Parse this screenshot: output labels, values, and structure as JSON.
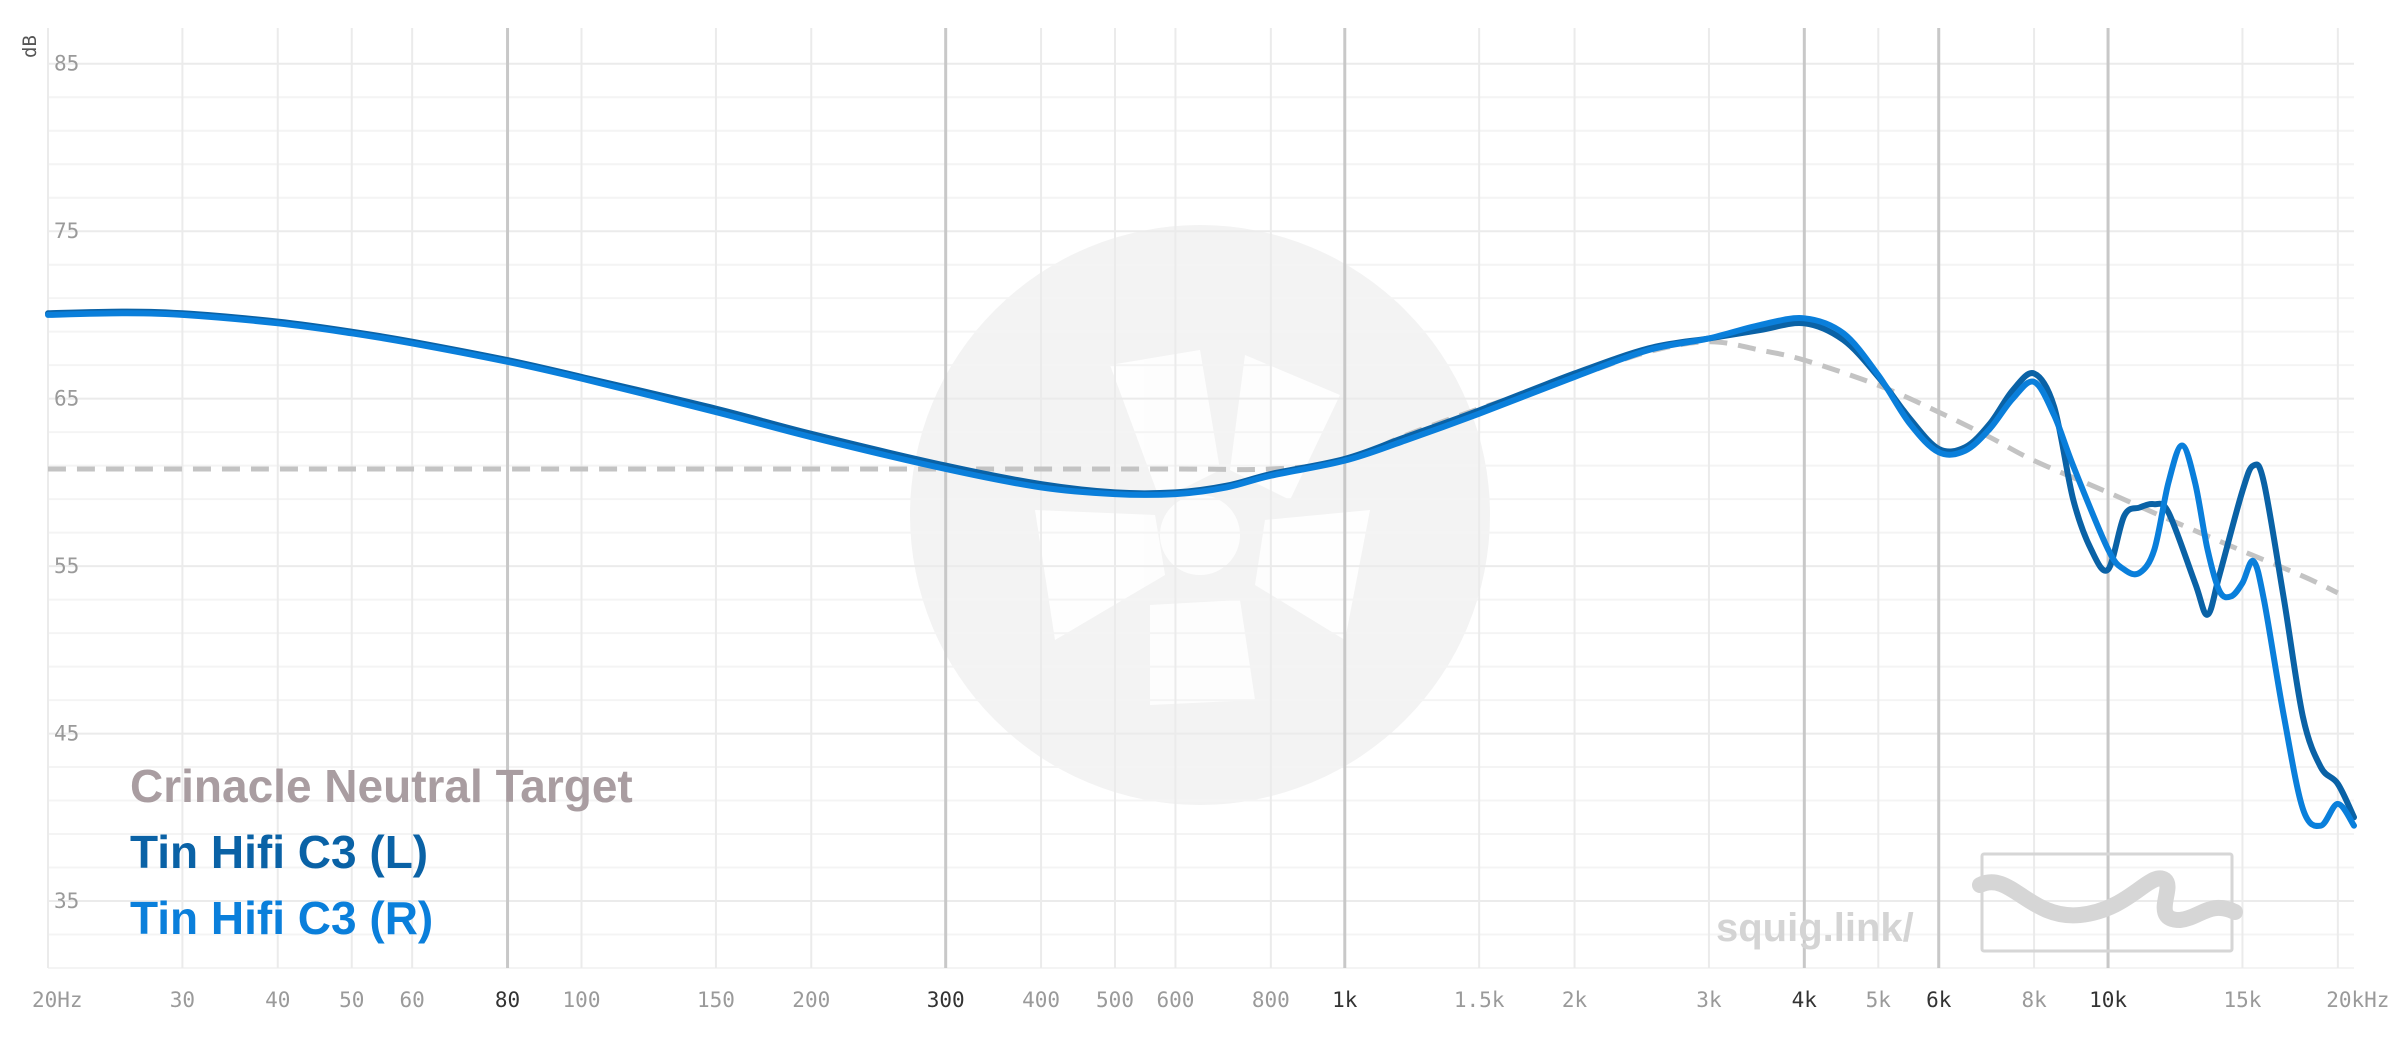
{
  "chart_data": {
    "type": "line",
    "xscale": "log",
    "xlim": [
      20,
      21000
    ],
    "ylim": [
      31,
      86
    ],
    "y_unit": "dB",
    "yticks": [
      35,
      45,
      55,
      65,
      75,
      85
    ],
    "xticks": [
      {
        "value": 20,
        "label": "20Hz",
        "major": false
      },
      {
        "value": 30,
        "label": "30",
        "major": false
      },
      {
        "value": 40,
        "label": "40",
        "major": false
      },
      {
        "value": 50,
        "label": "50",
        "major": false
      },
      {
        "value": 60,
        "label": "60",
        "major": false
      },
      {
        "value": 80,
        "label": "80",
        "major": true
      },
      {
        "value": 100,
        "label": "100",
        "major": false
      },
      {
        "value": 150,
        "label": "150",
        "major": false
      },
      {
        "value": 200,
        "label": "200",
        "major": false
      },
      {
        "value": 300,
        "label": "300",
        "major": true
      },
      {
        "value": 400,
        "label": "400",
        "major": false
      },
      {
        "value": 500,
        "label": "500",
        "major": false
      },
      {
        "value": 600,
        "label": "600",
        "major": false
      },
      {
        "value": 800,
        "label": "800",
        "major": false
      },
      {
        "value": 1000,
        "label": "1k",
        "major": true
      },
      {
        "value": 1500,
        "label": "1.5k",
        "major": false
      },
      {
        "value": 2000,
        "label": "2k",
        "major": false
      },
      {
        "value": 3000,
        "label": "3k",
        "major": false
      },
      {
        "value": 4000,
        "label": "4k",
        "major": true
      },
      {
        "value": 5000,
        "label": "5k",
        "major": false
      },
      {
        "value": 6000,
        "label": "6k",
        "major": true
      },
      {
        "value": 8000,
        "label": "8k",
        "major": false
      },
      {
        "value": 10000,
        "label": "10k",
        "major": true
      },
      {
        "value": 15000,
        "label": "15k",
        "major": false
      },
      {
        "value": 20000,
        "label": "20kHz",
        "major": false
      }
    ],
    "legend_placement": "bottom-left",
    "grid": true,
    "series": [
      {
        "name": "Crinacle Neutral Target",
        "color": "#a99da1",
        "line_color": "#c3c3c3",
        "dashed": true,
        "points": [
          [
            20,
            60.8
          ],
          [
            100,
            60.8
          ],
          [
            300,
            60.8
          ],
          [
            600,
            60.8
          ],
          [
            800,
            60.8
          ],
          [
            1000,
            61.3
          ],
          [
            1200,
            62.8
          ],
          [
            1500,
            64.4
          ],
          [
            2000,
            66.3
          ],
          [
            2500,
            67.8
          ],
          [
            3000,
            68.4
          ],
          [
            3500,
            67.9
          ],
          [
            4000,
            67.3
          ],
          [
            5000,
            65.8
          ],
          [
            6000,
            64.2
          ],
          [
            7000,
            62.7
          ],
          [
            8000,
            61.3
          ],
          [
            10000,
            59.4
          ],
          [
            12000,
            57.8
          ],
          [
            15000,
            55.9
          ],
          [
            18000,
            54.4
          ],
          [
            20000,
            53.4
          ]
        ]
      },
      {
        "name": "Tin Hifi C3 (L)",
        "color": "#0a62a6",
        "dashed": false,
        "points": [
          [
            20,
            70.1
          ],
          [
            25,
            70.2
          ],
          [
            30,
            70.1
          ],
          [
            40,
            69.6
          ],
          [
            50,
            69
          ],
          [
            60,
            68.4
          ],
          [
            80,
            67.3
          ],
          [
            100,
            66.3
          ],
          [
            150,
            64.4
          ],
          [
            200,
            62.9
          ],
          [
            300,
            61
          ],
          [
            400,
            59.9
          ],
          [
            500,
            59.4
          ],
          [
            600,
            59.4
          ],
          [
            700,
            59.8
          ],
          [
            800,
            60.5
          ],
          [
            1000,
            61.4
          ],
          [
            1200,
            62.7
          ],
          [
            1500,
            64.3
          ],
          [
            2000,
            66.5
          ],
          [
            2500,
            68
          ],
          [
            3000,
            68.6
          ],
          [
            3500,
            69.1
          ],
          [
            4000,
            69.5
          ],
          [
            4500,
            68.5
          ],
          [
            5000,
            66.3
          ],
          [
            5500,
            63.8
          ],
          [
            6000,
            62
          ],
          [
            6500,
            62.1
          ],
          [
            7000,
            63.5
          ],
          [
            7500,
            65.5
          ],
          [
            8000,
            66.5
          ],
          [
            8500,
            64.5
          ],
          [
            9000,
            59
          ],
          [
            9500,
            56
          ],
          [
            10000,
            54.8
          ],
          [
            10500,
            58
          ],
          [
            11000,
            58.5
          ],
          [
            11500,
            58.7
          ],
          [
            12000,
            58.2
          ],
          [
            13000,
            54
          ],
          [
            13500,
            52.1
          ],
          [
            14000,
            54.5
          ],
          [
            15000,
            59.5
          ],
          [
            15500,
            61
          ],
          [
            16000,
            60
          ],
          [
            17000,
            53
          ],
          [
            18000,
            46
          ],
          [
            19000,
            43
          ],
          [
            20000,
            42
          ],
          [
            21000,
            40
          ]
        ]
      },
      {
        "name": "Tin Hifi C3 (R)",
        "color": "#0a7fdb",
        "dashed": false,
        "points": [
          [
            20,
            70
          ],
          [
            25,
            70.1
          ],
          [
            30,
            70
          ],
          [
            40,
            69.5
          ],
          [
            50,
            68.9
          ],
          [
            60,
            68.3
          ],
          [
            80,
            67.2
          ],
          [
            100,
            66.2
          ],
          [
            150,
            64.2
          ],
          [
            200,
            62.7
          ],
          [
            300,
            60.8
          ],
          [
            400,
            59.7
          ],
          [
            500,
            59.3
          ],
          [
            600,
            59.3
          ],
          [
            700,
            59.7
          ],
          [
            800,
            60.4
          ],
          [
            1000,
            61.3
          ],
          [
            1200,
            62.5
          ],
          [
            1500,
            64.1
          ],
          [
            2000,
            66.3
          ],
          [
            2500,
            67.9
          ],
          [
            3000,
            68.6
          ],
          [
            3500,
            69.4
          ],
          [
            4000,
            69.8
          ],
          [
            4500,
            68.9
          ],
          [
            5000,
            66.4
          ],
          [
            5500,
            63.5
          ],
          [
            6000,
            61.8
          ],
          [
            6500,
            61.9
          ],
          [
            7000,
            63.2
          ],
          [
            7500,
            65
          ],
          [
            8000,
            66
          ],
          [
            8500,
            64
          ],
          [
            9000,
            61
          ],
          [
            10000,
            56
          ],
          [
            10500,
            54.8
          ],
          [
            11000,
            54.6
          ],
          [
            11500,
            56
          ],
          [
            12000,
            60
          ],
          [
            12500,
            62.2
          ],
          [
            13000,
            60
          ],
          [
            13500,
            56
          ],
          [
            14000,
            53.5
          ],
          [
            14500,
            53.2
          ],
          [
            15000,
            54
          ],
          [
            15500,
            55.3
          ],
          [
            16000,
            53
          ],
          [
            17000,
            46
          ],
          [
            18000,
            40.5
          ],
          [
            19000,
            39.5
          ],
          [
            20000,
            40.8
          ],
          [
            21000,
            39.5
          ]
        ]
      }
    ]
  },
  "watermark": {
    "text": "squig.link/"
  }
}
